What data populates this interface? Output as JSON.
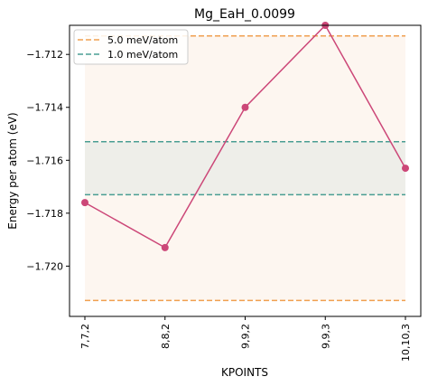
{
  "chart_data": {
    "type": "line",
    "title": "Mg_EaH_0.0099",
    "xlabel": "KPOINTS",
    "ylabel": "Energy per atom (eV)",
    "categories": [
      "7,7,2",
      "8,8,2",
      "9,9,2",
      "9,9,3",
      "10,10,3"
    ],
    "series": [
      {
        "values": [
          -1.7176,
          -1.7193,
          -1.714,
          -1.7109,
          -1.7163
        ],
        "color": "#cc4778"
      }
    ],
    "reference_lines": [
      {
        "name": "5.0 meV/atom",
        "upper": -1.7113,
        "lower": -1.7213,
        "color": "#f0a050",
        "fill": "#fdf6f0"
      },
      {
        "name": "1.0 meV/atom",
        "upper": -1.7153,
        "lower": -1.7173,
        "color": "#4a9e93",
        "fill": "#eeeee9"
      }
    ],
    "ylim": [
      -1.7219,
      -1.7109
    ],
    "y_ticks": [
      -1.712,
      -1.714,
      -1.716,
      -1.718,
      -1.72
    ],
    "y_tick_labels": [
      "−1.712",
      "−1.714",
      "−1.716",
      "−1.718",
      "−1.720"
    ],
    "grid": false,
    "legend_position": "top-left"
  }
}
